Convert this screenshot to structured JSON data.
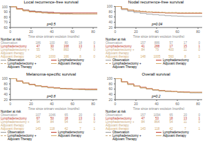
{
  "chart_data": [
    {
      "type": "step",
      "title": "Local recurrence-free survival",
      "x_label": "Time since primary excision (months)",
      "annotations": [
        "p=0.5"
      ],
      "grid": false,
      "legend": "bottom",
      "x": [
        0,
        6,
        12,
        18,
        24,
        30,
        36,
        42,
        48,
        54,
        60,
        66,
        72,
        78,
        84
      ],
      "xlim": [
        0,
        84
      ],
      "ylim": [
        60,
        101
      ],
      "xticks": [
        0,
        20,
        40,
        60,
        80
      ],
      "yticks": [
        60,
        70,
        80,
        90,
        100
      ],
      "series": [
        {
          "name": "Observation",
          "color": "#999999",
          "line_style": "solid",
          "values": [
            100,
            96,
            94,
            92,
            91,
            90,
            89,
            88,
            87,
            87,
            86,
            86,
            86,
            86,
            86
          ]
        },
        {
          "name": "Lymphadenectomy",
          "color": "#c0392b",
          "line_style": "solid",
          "values": [
            100,
            96,
            93,
            91,
            90,
            89,
            89,
            88,
            88,
            88,
            88,
            88,
            88,
            88,
            88
          ]
        },
        {
          "name": "Lymphadenectomy +\nAdjuvant Therapy",
          "color": "#c8a87a",
          "line_style": "dashed",
          "values": [
            100,
            95,
            92,
            90,
            89,
            88,
            87,
            87,
            86,
            86,
            86,
            86,
            86,
            86,
            86
          ]
        },
        {
          "name": "Adjuvant therapy",
          "color": "#d4a96a",
          "line_style": "solid",
          "values": [
            100,
            95,
            92,
            90,
            89,
            88,
            87,
            87,
            86,
            86,
            86,
            86,
            86,
            86,
            86
          ]
        }
      ],
      "at_risk": {
        "title": "Number at risk",
        "rows": [
          {
            "label": "Observation",
            "color": "#999999",
            "values": [
              186,
              100,
              80,
              18,
              0
            ]
          },
          {
            "label": "Lymphadenectomy",
            "color": "#c0392b",
            "values": [
              47,
              30,
              168,
              13,
              1
            ]
          },
          {
            "label": "Lymphadenectomy +\nAdjuvant therapy",
            "color": "#c8a87a",
            "values": [
              55,
              74,
              860,
              7,
              0
            ]
          },
          {
            "label": "Adjuvant therapy",
            "color": "#d4a96a",
            "values": [
              142,
              1000,
              166,
              8,
              0
            ]
          }
        ]
      }
    },
    {
      "type": "step",
      "title": "Nodal recurrence-free survival",
      "x_label": "Time since primary excision (months)",
      "annotations": [
        "p=0.04"
      ],
      "grid": false,
      "legend": "bottom",
      "x": [
        0,
        6,
        12,
        18,
        24,
        30,
        36,
        42,
        48,
        54,
        60,
        66,
        72,
        78,
        84
      ],
      "xlim": [
        0,
        84
      ],
      "ylim": [
        20,
        101
      ],
      "xticks": [
        0,
        20,
        40,
        60,
        80
      ],
      "yticks": [
        20,
        40,
        60,
        80,
        100
      ],
      "series": [
        {
          "name": "Observation",
          "color": "#999999",
          "line_style": "solid",
          "values": [
            100,
            88,
            82,
            77,
            74,
            71,
            69,
            67,
            65,
            64,
            63,
            62,
            62,
            62,
            62
          ]
        },
        {
          "name": "Lymphadenectomy",
          "color": "#c0392b",
          "line_style": "solid",
          "values": [
            100,
            91,
            86,
            82,
            80,
            78,
            77,
            76,
            75,
            75,
            74,
            74,
            74,
            74,
            74
          ]
        },
        {
          "name": "Lymphadenectomy +\nAdjuvant Therapy",
          "color": "#c8a87a",
          "line_style": "dashed",
          "values": [
            100,
            92,
            87,
            84,
            82,
            80,
            79,
            78,
            77,
            77,
            76,
            76,
            76,
            76,
            76
          ]
        },
        {
          "name": "Adjuvant therapy",
          "color": "#d4a96a",
          "line_style": "solid",
          "values": [
            100,
            91,
            86,
            82,
            80,
            79,
            78,
            77,
            76,
            76,
            75,
            75,
            75,
            75,
            75
          ]
        }
      ],
      "at_risk": {
        "title": "Number at risk",
        "rows": [
          {
            "label": "Observation",
            "color": "#999999",
            "values": [
              157,
              886,
              57,
              17,
              0
            ]
          },
          {
            "label": "Lymphadenectomy",
            "color": "#c0392b",
            "values": [
              41,
              288,
              17,
              15,
              1
            ]
          },
          {
            "label": "Lymphadenectomy +\nAdjuvant therapy",
            "color": "#c8a87a",
            "values": [
              84,
              79,
              400,
              11,
              0
            ]
          },
          {
            "label": "Adjuvant therapy",
            "color": "#d4a96a",
            "values": [
              148,
              1005,
              560,
              8,
              1
            ]
          }
        ]
      }
    },
    {
      "type": "step",
      "title": "Melanoma-specific survival",
      "x_label": "Time since primary excision (months)",
      "annotations": [
        "p=0.8"
      ],
      "grid": false,
      "legend": "bottom",
      "x": [
        0,
        6,
        12,
        18,
        24,
        30,
        36,
        42,
        48,
        54,
        60,
        66,
        72,
        78,
        84
      ],
      "xlim": [
        0,
        84
      ],
      "ylim": [
        20,
        101
      ],
      "xticks": [
        0,
        20,
        40,
        60,
        80
      ],
      "yticks": [
        20,
        40,
        60,
        80,
        100
      ],
      "series": [
        {
          "name": "Observation",
          "color": "#999999",
          "line_style": "solid",
          "values": [
            100,
            90,
            83,
            77,
            72,
            68,
            65,
            63,
            61,
            60,
            59,
            58,
            57,
            57,
            57
          ]
        },
        {
          "name": "Lymphadenectomy",
          "color": "#c0392b",
          "line_style": "solid",
          "values": [
            100,
            91,
            84,
            78,
            73,
            70,
            67,
            65,
            63,
            62,
            61,
            61,
            60,
            60,
            60
          ]
        },
        {
          "name": "Lymphadenectomy +\nAdjuvant Therapy",
          "color": "#c8a87a",
          "line_style": "dashed",
          "values": [
            100,
            90,
            83,
            77,
            72,
            69,
            66,
            64,
            62,
            61,
            60,
            59,
            59,
            59,
            59
          ]
        },
        {
          "name": "Adjuvant therapy",
          "color": "#d4a96a",
          "line_style": "solid",
          "values": [
            100,
            90,
            83,
            77,
            73,
            69,
            66,
            64,
            62,
            61,
            60,
            59,
            58,
            58,
            58
          ]
        }
      ],
      "at_risk": {
        "title": "Number at risk",
        "rows": [
          {
            "label": "Observation",
            "color": "#999999",
            "values": [
              107,
              1046,
              65,
              20,
              0
            ]
          },
          {
            "label": "Lymphadenectomy",
            "color": "#c0392b",
            "values": [
              67,
              50,
              18,
              13,
              1
            ]
          },
          {
            "label": "Lymphadenectomy +\nAdjuvant therapy",
            "color": "#c8a87a",
            "values": [
              94,
              84,
              54,
              11,
              0
            ]
          },
          {
            "label": "Adjuvant therapy",
            "color": "#d4a96a",
            "values": [
              143,
              118,
              42,
              7,
              1
            ]
          }
        ]
      }
    },
    {
      "type": "step",
      "title": "Overall survival",
      "x_label": "Time since primary excision (months)",
      "annotations": [
        "p=0.2"
      ],
      "grid": false,
      "legend": "bottom",
      "x": [
        0,
        6,
        12,
        18,
        24,
        30,
        36,
        42,
        48,
        54,
        60,
        66,
        72,
        78,
        84
      ],
      "xlim": [
        0,
        84
      ],
      "ylim": [
        20,
        101
      ],
      "xticks": [
        0,
        20,
        40,
        60,
        80
      ],
      "yticks": [
        20,
        40,
        60,
        80,
        100
      ],
      "series": [
        {
          "name": "Observation",
          "color": "#999999",
          "line_style": "solid",
          "values": [
            100,
            87,
            78,
            71,
            65,
            60,
            56,
            53,
            51,
            50,
            48,
            47,
            46,
            46,
            46
          ]
        },
        {
          "name": "Lymphadenectomy",
          "color": "#c0392b",
          "line_style": "solid",
          "values": [
            100,
            88,
            80,
            72,
            67,
            62,
            58,
            55,
            53,
            51,
            50,
            49,
            48,
            48,
            48
          ]
        },
        {
          "name": "Lymphadenectomy +\nAdjuvant Therapy",
          "color": "#c8a87a",
          "line_style": "dashed",
          "values": [
            100,
            87,
            78,
            71,
            65,
            61,
            57,
            54,
            52,
            50,
            49,
            48,
            47,
            47,
            47
          ]
        },
        {
          "name": "Adjuvant therapy",
          "color": "#d4a96a",
          "line_style": "solid",
          "values": [
            100,
            87,
            78,
            71,
            65,
            61,
            57,
            54,
            52,
            51,
            49,
            48,
            48,
            48,
            48
          ]
        }
      ],
      "at_risk": {
        "title": "Number at risk",
        "rows": [
          {
            "label": "Observation",
            "color": "#999999",
            "values": [
              157,
              1094,
              65,
              20,
              0
            ]
          },
          {
            "label": "Lymphadenectomy",
            "color": "#c0392b",
            "values": [
              47,
              53,
              18,
              13,
              1
            ]
          },
          {
            "label": "Lymphadenectomy +\nAdjuvant therapy",
            "color": "#c8a87a",
            "values": [
              84,
              864,
              54,
              11,
              0
            ]
          },
          {
            "label": "Adjuvant therapy",
            "color": "#d4a96a",
            "values": [
              143,
              118,
              42,
              7,
              1
            ]
          }
        ]
      }
    }
  ]
}
